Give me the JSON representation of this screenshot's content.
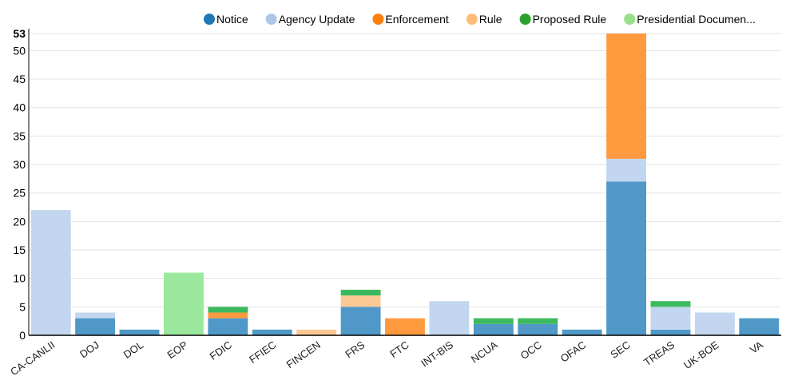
{
  "chart_data": {
    "type": "bar",
    "stacked": true,
    "categories": [
      "CA-CANLII",
      "DOJ",
      "DOL",
      "EOP",
      "FDIC",
      "FFIEC",
      "FINCEN",
      "FRS",
      "FTC",
      "INT-BIS",
      "NCUA",
      "OCC",
      "OFAC",
      "SEC",
      "TREAS",
      "UK-BOE",
      "VA"
    ],
    "category_display": [
      "CA-CANLII",
      "DOJ",
      "DOL",
      "EOP",
      "FDIC",
      "FFIEC",
      "FINCEN",
      "FRS",
      "FTC",
      "INT-BIS",
      "NCUA",
      "OCC",
      "OFAC",
      "SEC",
      "TREAS",
      "UK-BOE",
      "VA"
    ],
    "series": [
      {
        "name": "Notice",
        "legend_label": "Notice",
        "color": "#1f77b4",
        "bar_color": "#4f98c8",
        "values": [
          0,
          3,
          1,
          0,
          3,
          1,
          0,
          5,
          0,
          0,
          2,
          2,
          1,
          27,
          1,
          0,
          3
        ]
      },
      {
        "name": "Agency Update",
        "legend_label": "Agency Update",
        "color": "#aec7e8",
        "bar_color": "#c2d6ef",
        "values": [
          22,
          1,
          0,
          0,
          0,
          0,
          0,
          0,
          0,
          6,
          0,
          0,
          0,
          4,
          4,
          4,
          0
        ]
      },
      {
        "name": "Enforcement",
        "legend_label": "Enforcement",
        "color": "#ff7f0e",
        "bar_color": "#ff9a3f",
        "values": [
          0,
          0,
          0,
          0,
          1,
          0,
          0,
          0,
          3,
          0,
          0,
          0,
          0,
          22,
          0,
          0,
          0
        ]
      },
      {
        "name": "Rule",
        "legend_label": "Rule",
        "color": "#ffbb78",
        "bar_color": "#fdc995",
        "values": [
          0,
          0,
          0,
          0,
          0,
          0,
          1,
          2,
          0,
          0,
          0,
          0,
          0,
          0,
          0,
          0,
          0
        ]
      },
      {
        "name": "Proposed Rule",
        "legend_label": "Proposed Rule",
        "color": "#2ca02c",
        "bar_color": "#3cb95e",
        "values": [
          0,
          0,
          0,
          0,
          1,
          0,
          0,
          1,
          0,
          0,
          1,
          1,
          0,
          0,
          1,
          0,
          0
        ]
      },
      {
        "name": "Presidential Documents",
        "legend_label": "Presidential Documen...",
        "color": "#98df8a",
        "bar_color": "#9be79d",
        "values": [
          0,
          0,
          0,
          11,
          0,
          0,
          0,
          0,
          0,
          0,
          0,
          0,
          0,
          0,
          0,
          0,
          0
        ]
      }
    ],
    "y_ticks": [
      "0",
      "5",
      "10",
      "15",
      "20",
      "25",
      "30",
      "35",
      "40",
      "45",
      "50"
    ],
    "y_max_label": "53",
    "ylim": [
      0,
      53
    ],
    "xlabel": "",
    "ylabel": "",
    "title": "",
    "grid": true,
    "legend_position": "top-right"
  }
}
